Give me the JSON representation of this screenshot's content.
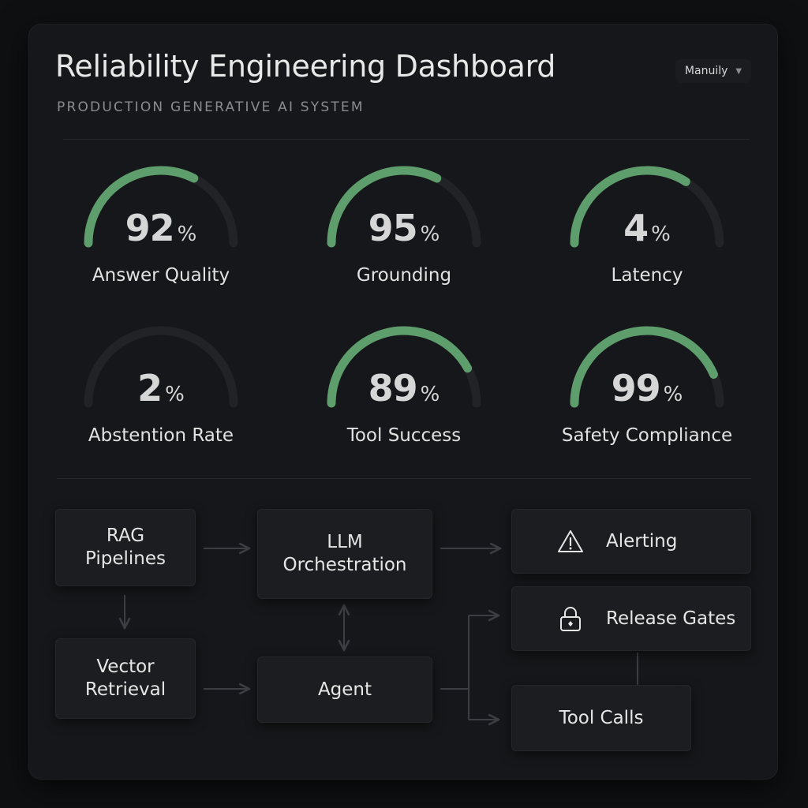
{
  "header": {
    "title": "Reliability Engineering Dashboard",
    "subtitle": "PRODUCTION GENERATIVE AI SYSTEM",
    "dropdown": {
      "selected": "Manuily"
    }
  },
  "gauges": [
    {
      "label": "Answer Quality",
      "value": "92",
      "unit": "%",
      "fill": 0.65
    },
    {
      "label": "Grounding",
      "value": "95",
      "unit": "%",
      "fill": 0.65
    },
    {
      "label": "Latency",
      "value": "4",
      "unit": "%",
      "fill": 0.68
    },
    {
      "label": "Abstention Rate",
      "value": "2",
      "unit": "%",
      "fill": 0.0
    },
    {
      "label": "Tool Success",
      "value": "89",
      "unit": "%",
      "fill": 0.84
    },
    {
      "label": "Safety Compliance",
      "value": "99",
      "unit": "%",
      "fill": 0.87
    }
  ],
  "colors": {
    "accent": "#5e9e6c",
    "track": "#222326",
    "panel": "#16171a",
    "node": "#1c1d20"
  },
  "flow": {
    "rag": {
      "line1": "RAG",
      "line2": "Pipelines"
    },
    "llm": {
      "line1": "LLM",
      "line2": "Orchestration"
    },
    "vector": {
      "line1": "Vector",
      "line2": "Retrieval"
    },
    "agent": {
      "label": "Agent"
    },
    "alerting": {
      "label": "Alerting",
      "icon": "warning-icon"
    },
    "release_gates": {
      "label": "Release Gates",
      "icon": "lock-icon"
    },
    "tool_calls": {
      "label": "Tool Calls"
    }
  }
}
